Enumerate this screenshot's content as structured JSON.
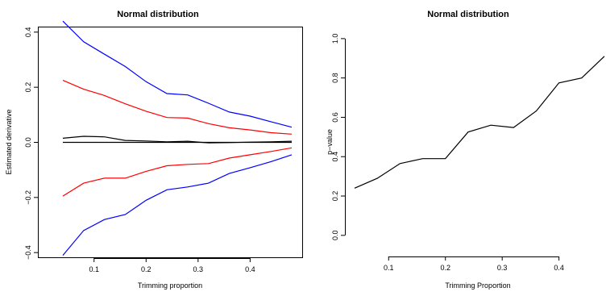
{
  "chart_data": [
    {
      "type": "line",
      "title": "Normal distribution",
      "xlabel": "Trimming proportion",
      "ylabel": "Estimated derivative",
      "xlim": [
        0.04,
        0.48
      ],
      "ylim": [
        -0.42,
        0.42
      ],
      "x_ticks": [
        0.1,
        0.2,
        0.3,
        0.4
      ],
      "x_tick_labels": [
        "0.1",
        "0.2",
        "0.3",
        "0.4"
      ],
      "y_ticks": [
        -0.4,
        -0.2,
        0.0,
        0.2,
        0.4
      ],
      "y_tick_labels": [
        "−0.4",
        "−0.2",
        "0.0",
        "0.2",
        "0.4"
      ],
      "x": [
        0.04,
        0.08,
        0.12,
        0.16,
        0.2,
        0.24,
        0.28,
        0.32,
        0.36,
        0.4,
        0.44,
        0.48
      ],
      "series": [
        {
          "color": "#0000ff",
          "values": [
            0.44,
            0.365,
            0.32,
            0.275,
            0.22,
            0.177,
            0.172,
            0.142,
            0.11,
            0.095,
            0.075,
            0.055
          ]
        },
        {
          "color": "#ff0000",
          "values": [
            0.225,
            0.193,
            0.17,
            0.14,
            0.113,
            0.09,
            0.088,
            0.068,
            0.053,
            0.045,
            0.035,
            0.03
          ]
        },
        {
          "color": "#000000",
          "values": [
            0.015,
            0.022,
            0.02,
            0.007,
            0.005,
            0.002,
            0.004,
            -0.002,
            -0.001,
            0.001,
            0.002,
            0.004
          ]
        },
        {
          "color": "#000000",
          "values": [
            0,
            0,
            0,
            0,
            0,
            0,
            0,
            0,
            0,
            0,
            0,
            0
          ]
        },
        {
          "color": "#ff0000",
          "values": [
            -0.195,
            -0.148,
            -0.13,
            -0.13,
            -0.105,
            -0.085,
            -0.08,
            -0.077,
            -0.057,
            -0.045,
            -0.033,
            -0.02
          ]
        },
        {
          "color": "#0000ff",
          "values": [
            -0.41,
            -0.32,
            -0.28,
            -0.262,
            -0.21,
            -0.172,
            -0.162,
            -0.148,
            -0.113,
            -0.092,
            -0.07,
            -0.045
          ]
        }
      ]
    },
    {
      "type": "line",
      "title": "Normal distribution",
      "xlabel": "Trimming Proportion",
      "ylabel": "p−value",
      "xlim": [
        0.04,
        0.48
      ],
      "ylim": [
        0.0,
        1.0
      ],
      "x_ticks": [
        0.1,
        0.2,
        0.3,
        0.4
      ],
      "x_tick_labels": [
        "0.1",
        "0.2",
        "0.3",
        "0.4"
      ],
      "y_ticks": [
        0.0,
        0.2,
        0.4,
        0.6,
        0.8,
        1.0
      ],
      "y_tick_labels": [
        "0.0",
        "0.2",
        "0.4",
        "0.6",
        "0.8",
        "1.0"
      ],
      "x": [
        0.04,
        0.08,
        0.12,
        0.16,
        0.2,
        0.24,
        0.28,
        0.32,
        0.36,
        0.4,
        0.44,
        0.48
      ],
      "series": [
        {
          "color": "#000000",
          "values": [
            0.24,
            0.29,
            0.365,
            0.39,
            0.39,
            0.525,
            0.56,
            0.548,
            0.632,
            0.775,
            0.8,
            0.91
          ]
        }
      ]
    }
  ]
}
